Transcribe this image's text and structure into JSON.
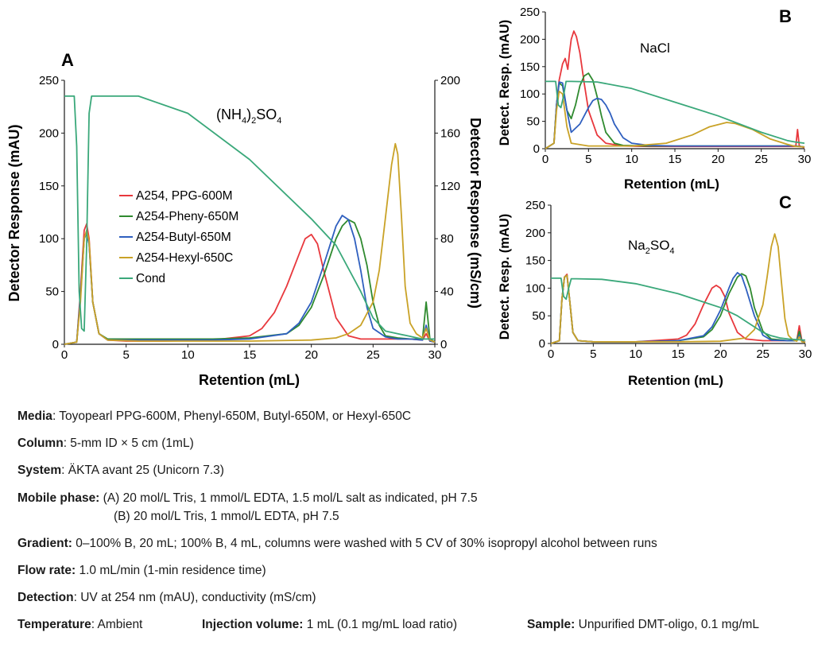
{
  "colors": {
    "ppg": "#e8383d",
    "phenyl": "#2f8a2f",
    "butyl": "#2f5fbf",
    "hexyl": "#c9a227",
    "cond": "#3aa87a",
    "axis": "#1a1a1a"
  },
  "chart_data": [
    {
      "id": "A",
      "type": "line",
      "panel_label": "A",
      "annotation": "(NH4)2SO4",
      "annotation_parts": {
        "a": "(NH",
        "s1": "4",
        "b": ")",
        "s2": "2",
        "c": "SO",
        "s3": "4"
      },
      "xlabel": "Retention (mL)",
      "ylabel": "Detector Response (mAU)",
      "y2label": "Detector Response (mS/cm)",
      "xlim": [
        0,
        30
      ],
      "ylim": [
        0,
        250
      ],
      "y2lim": [
        0,
        200
      ],
      "xticks": [
        0,
        5,
        10,
        15,
        20,
        25,
        30
      ],
      "yticks": [
        0,
        50,
        100,
        150,
        200,
        250
      ],
      "y2ticks": [
        0,
        40,
        80,
        120,
        160,
        200
      ],
      "grid": false,
      "legend_position": "center-left",
      "legend": [
        "A254, PPG-600M",
        "A254-Pheny-650M",
        "A254-Butyl-650M",
        "A254-Hexyl-650C",
        "Cond"
      ],
      "series": [
        {
          "name": "A254, PPG-600M",
          "color_key": "ppg",
          "axis": "y",
          "x": [
            0,
            1.0,
            1.3,
            1.6,
            1.8,
            2.0,
            2.3,
            2.8,
            3.5,
            5,
            8,
            12,
            15,
            16,
            17,
            18,
            19,
            19.5,
            20,
            20.5,
            21,
            22,
            23,
            24,
            25,
            26,
            27,
            28,
            29,
            29.3,
            29.6,
            30
          ],
          "y": [
            0,
            2,
            50,
            108,
            114,
            100,
            40,
            10,
            4,
            3,
            3,
            4,
            8,
            15,
            30,
            55,
            85,
            100,
            104,
            95,
            70,
            25,
            8,
            5,
            5,
            5,
            5,
            5,
            4,
            10,
            3,
            2
          ]
        },
        {
          "name": "A254-Pheny-650M",
          "color_key": "phenyl",
          "axis": "y",
          "x": [
            0,
            1.0,
            1.3,
            1.6,
            1.8,
            2.0,
            2.3,
            2.8,
            3.5,
            6,
            9,
            12,
            15,
            18,
            19,
            20,
            21,
            22,
            22.5,
            23,
            23.5,
            24,
            24.5,
            25,
            25.5,
            26,
            27,
            28,
            29,
            29.3,
            29.6,
            30
          ],
          "y": [
            0,
            2,
            45,
            100,
            107,
            95,
            40,
            10,
            5,
            5,
            5,
            5,
            6,
            10,
            18,
            35,
            65,
            100,
            112,
            118,
            115,
            100,
            75,
            40,
            18,
            8,
            6,
            5,
            5,
            40,
            5,
            2
          ]
        },
        {
          "name": "A254-Butyl-650M",
          "color_key": "butyl",
          "axis": "y",
          "x": [
            0,
            1.0,
            1.3,
            1.6,
            1.8,
            2.0,
            2.3,
            2.8,
            3.5,
            6,
            9,
            12,
            15,
            18,
            19,
            20,
            21,
            22,
            22.5,
            23,
            23.5,
            24,
            24.5,
            25,
            26,
            27,
            28,
            29,
            29.3,
            29.6,
            30
          ],
          "y": [
            0,
            2,
            45,
            100,
            105,
            95,
            40,
            10,
            4,
            4,
            4,
            4,
            5,
            10,
            20,
            40,
            75,
            112,
            122,
            118,
            100,
            70,
            35,
            15,
            7,
            5,
            5,
            4,
            18,
            3,
            2
          ]
        },
        {
          "name": "A254-Hexyl-650C",
          "color_key": "hexyl",
          "axis": "y",
          "x": [
            0,
            1.0,
            1.3,
            1.6,
            1.8,
            2.0,
            2.3,
            2.8,
            3.5,
            6,
            10,
            15,
            20,
            22,
            23,
            24,
            25,
            25.5,
            26,
            26.5,
            26.8,
            27,
            27.3,
            27.6,
            28,
            28.5,
            29,
            29.3,
            29.6,
            30
          ],
          "y": [
            0,
            2,
            40,
            100,
            108,
            98,
            40,
            10,
            4,
            3,
            3,
            3,
            4,
            6,
            10,
            18,
            40,
            70,
            120,
            170,
            190,
            180,
            120,
            55,
            20,
            10,
            6,
            15,
            4,
            2
          ]
        },
        {
          "name": "Cond",
          "color_key": "cond",
          "axis": "y2",
          "x": [
            0,
            0.8,
            1.0,
            1.2,
            1.4,
            1.6,
            1.8,
            2.0,
            2.2,
            2.5,
            3,
            6,
            10,
            15,
            20,
            22,
            24,
            25,
            26,
            27,
            28,
            28.5,
            29,
            29.3,
            29.6,
            30
          ],
          "y": [
            188,
            188,
            150,
            40,
            12,
            10,
            75,
            175,
            188,
            188,
            188,
            188,
            175,
            140,
            95,
            75,
            40,
            20,
            10,
            8,
            6,
            5,
            4,
            4,
            4,
            4
          ]
        }
      ]
    },
    {
      "id": "B",
      "type": "line",
      "panel_label": "B",
      "annotation": "NaCl",
      "xlabel": "Retention (mL)",
      "ylabel": "Detect. Resp. (mAU)",
      "xlim": [
        0,
        30
      ],
      "ylim": [
        0,
        250
      ],
      "xticks": [
        0,
        5,
        10,
        15,
        20,
        25,
        30
      ],
      "yticks": [
        0,
        50,
        100,
        150,
        200,
        250
      ],
      "grid": false,
      "series": [
        {
          "color_key": "ppg",
          "x": [
            0,
            1.0,
            1.3,
            1.6,
            2.0,
            2.3,
            2.6,
            2.8,
            3.0,
            3.3,
            3.6,
            4.0,
            4.5,
            5,
            6,
            7,
            9,
            12,
            15,
            20,
            25,
            28,
            29,
            29.2,
            29.4,
            30
          ],
          "y": [
            0,
            10,
            80,
            125,
            155,
            165,
            145,
            175,
            200,
            215,
            205,
            175,
            120,
            70,
            25,
            10,
            5,
            4,
            4,
            4,
            4,
            4,
            4,
            35,
            5,
            2
          ]
        },
        {
          "color_key": "phenyl",
          "x": [
            0,
            1.0,
            1.3,
            1.6,
            2.0,
            2.5,
            3.0,
            3.5,
            4.0,
            4.5,
            5.0,
            5.5,
            6.0,
            6.5,
            7.0,
            8,
            9,
            12,
            15,
            20,
            25,
            28,
            29,
            30
          ],
          "y": [
            0,
            10,
            80,
            120,
            115,
            70,
            55,
            80,
            115,
            133,
            138,
            125,
            95,
            60,
            30,
            10,
            6,
            5,
            5,
            5,
            5,
            5,
            5,
            3
          ]
        },
        {
          "color_key": "butyl",
          "x": [
            0,
            1.0,
            1.3,
            1.6,
            2.0,
            2.5,
            3.0,
            4.0,
            5.0,
            5.5,
            6.0,
            6.5,
            7.0,
            7.5,
            8.0,
            9,
            10,
            12,
            15,
            20,
            25,
            28,
            29,
            30
          ],
          "y": [
            0,
            10,
            80,
            122,
            120,
            70,
            30,
            45,
            75,
            88,
            92,
            90,
            80,
            65,
            45,
            20,
            10,
            6,
            5,
            5,
            5,
            5,
            5,
            3
          ]
        },
        {
          "color_key": "hexyl",
          "x": [
            0,
            1.0,
            1.3,
            1.6,
            2.0,
            2.5,
            3.0,
            5,
            10,
            14,
            17,
            19,
            21,
            22,
            24,
            26,
            28,
            29,
            30
          ],
          "y": [
            0,
            10,
            70,
            105,
            100,
            40,
            10,
            5,
            5,
            10,
            25,
            40,
            48,
            46,
            35,
            18,
            8,
            4,
            3
          ]
        },
        {
          "color_key": "cond",
          "x": [
            0,
            1.2,
            1.5,
            1.8,
            2.1,
            2.4,
            2.7,
            3.0,
            6,
            10,
            15,
            20,
            25,
            28,
            29,
            30
          ],
          "y": [
            123,
            123,
            80,
            75,
            95,
            123,
            123,
            123,
            122,
            110,
            85,
            60,
            30,
            15,
            12,
            10
          ]
        }
      ]
    },
    {
      "id": "C",
      "type": "line",
      "panel_label": "C",
      "annotation": "Na2SO4",
      "annotation_parts": {
        "a": "Na",
        "s1": "2",
        "b": "SO",
        "s2": "4"
      },
      "xlabel": "Retention (mL)",
      "ylabel": "Detect. Resp. (mAU)",
      "xlim": [
        0,
        30
      ],
      "ylim": [
        0,
        250
      ],
      "xticks": [
        0,
        5,
        10,
        15,
        20,
        25,
        30
      ],
      "yticks": [
        0,
        50,
        100,
        150,
        200,
        250
      ],
      "grid": false,
      "series": [
        {
          "color_key": "ppg",
          "x": [
            0,
            1.0,
            1.3,
            1.6,
            1.9,
            2.2,
            2.6,
            3.2,
            5,
            10,
            15,
            16,
            17,
            18,
            19,
            19.5,
            20,
            20.5,
            21,
            22,
            23,
            25,
            28,
            29,
            29.3,
            29.6,
            30
          ],
          "y": [
            0,
            5,
            80,
            120,
            125,
            80,
            20,
            5,
            3,
            3,
            8,
            15,
            35,
            70,
            100,
            105,
            100,
            85,
            55,
            20,
            8,
            5,
            5,
            5,
            32,
            5,
            2
          ]
        },
        {
          "color_key": "phenyl",
          "x": [
            0,
            1.0,
            1.3,
            1.6,
            1.9,
            2.2,
            2.6,
            3.2,
            5,
            10,
            15,
            18,
            19,
            20,
            21,
            22,
            22.5,
            23,
            23.5,
            24,
            25,
            26,
            28,
            29,
            29.3,
            29.6,
            30
          ],
          "y": [
            0,
            5,
            80,
            120,
            123,
            80,
            20,
            5,
            3,
            3,
            5,
            12,
            25,
            50,
            90,
            120,
            126,
            122,
            100,
            65,
            22,
            8,
            5,
            5,
            22,
            4,
            2
          ]
        },
        {
          "color_key": "butyl",
          "x": [
            0,
            1.0,
            1.3,
            1.6,
            1.9,
            2.2,
            2.6,
            3.2,
            5,
            10,
            15,
            18,
            19,
            20,
            21,
            21.5,
            22,
            22.5,
            23,
            24,
            25,
            26,
            28,
            29,
            29.3,
            29.6,
            30
          ],
          "y": [
            0,
            5,
            80,
            120,
            123,
            80,
            20,
            5,
            3,
            3,
            5,
            14,
            30,
            60,
            100,
            118,
            128,
            122,
            100,
            50,
            15,
            6,
            5,
            5,
            15,
            4,
            2
          ]
        },
        {
          "color_key": "hexyl",
          "x": [
            0,
            1.0,
            1.3,
            1.6,
            1.9,
            2.2,
            2.6,
            3.2,
            5,
            10,
            15,
            20,
            23,
            24,
            25,
            25.5,
            26,
            26.4,
            26.8,
            27.2,
            27.6,
            28,
            28.5,
            29,
            29.3,
            29.6,
            30
          ],
          "y": [
            0,
            5,
            80,
            120,
            123,
            80,
            20,
            5,
            3,
            3,
            3,
            4,
            10,
            25,
            70,
            120,
            175,
            198,
            175,
            110,
            45,
            15,
            7,
            4,
            12,
            3,
            2
          ]
        },
        {
          "color_key": "cond",
          "x": [
            0,
            1.2,
            1.5,
            1.8,
            2.1,
            2.4,
            3,
            6,
            10,
            15,
            20,
            22,
            24,
            25,
            26,
            27,
            28,
            29,
            30
          ],
          "y": [
            118,
            118,
            85,
            80,
            100,
            117,
            117,
            116,
            108,
            90,
            65,
            50,
            30,
            20,
            14,
            10,
            8,
            7,
            6
          ]
        }
      ]
    }
  ],
  "notes": {
    "media": {
      "label": "Media",
      "value": ": Toyopearl PPG-600M, Phenyl-650M, Butyl-650M, or Hexyl-650C"
    },
    "column": {
      "label": "Column",
      "value": ": 5-mm ID × 5 cm (1mL)"
    },
    "system": {
      "label": "System",
      "value": ": ÄKTA avant 25 (Unicorn 7.3)"
    },
    "mobile_phase": {
      "label": "Mobile phase:",
      "value_a": " (A) 20 mol/L Tris, 1 mmol/L EDTA, 1.5 mol/L salt as indicated, pH 7.5",
      "value_b": "(B) 20 mol/L Tris, 1 mmol/L EDTA, pH 7.5"
    },
    "gradient": {
      "label": "Gradient:",
      "value": " 0–100% B, 20 mL; 100% B, 4 mL, columns were washed with 5 CV of 30% isopropyl alcohol between runs"
    },
    "flow_rate": {
      "label": "Flow rate:",
      "value": " 1.0 mL/min (1-min residence time)"
    },
    "detection": {
      "label": "Detection",
      "value": ": UV at 254 nm (mAU), conductivity (mS/cm)"
    },
    "temperature": {
      "label": "Temperature",
      "value": ": Ambient"
    },
    "injection_volume": {
      "label": "Injection volume:",
      "value": " 1 mL (0.1 mg/mL load ratio)"
    },
    "sample": {
      "label": "Sample:",
      "value": " Unpurified DMT-oligo, 0.1 mg/mL"
    }
  }
}
